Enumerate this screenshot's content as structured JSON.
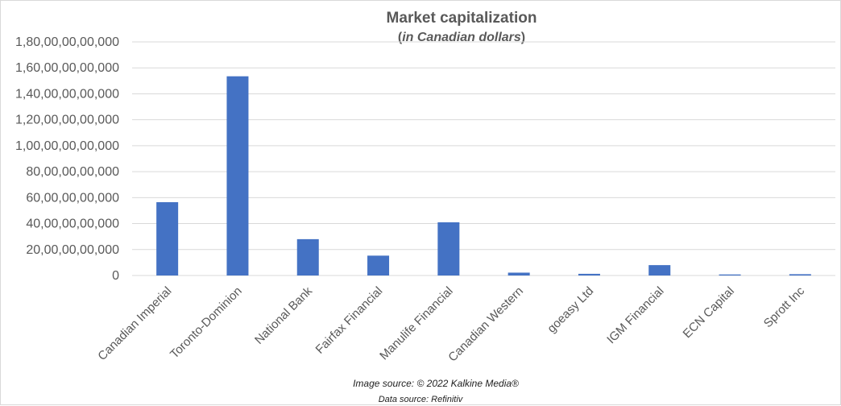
{
  "chart_data": {
    "type": "bar",
    "title": "Market capitalization",
    "subtitle_prefix": "(",
    "subtitle_italic": "in Canadian dollars",
    "subtitle_suffix": ")",
    "categories": [
      "Canadian Imperial",
      "Toronto-Dominion",
      "National Bank",
      "Fairfax Financial",
      "Manulife Financial",
      "Canadian Western",
      "goeasy Ltd",
      "IGM Financial",
      "ECN Capital",
      "Sprott Inc"
    ],
    "values": [
      56500000000,
      153500000000,
      28000000000,
      15300000000,
      41000000000,
      2200000000,
      1300000000,
      8000000000,
      800000000,
      1000000000
    ],
    "ylim": [
      0,
      180000000000
    ],
    "yticks": [
      0,
      20000000000,
      40000000000,
      60000000000,
      80000000000,
      100000000000,
      120000000000,
      140000000000,
      160000000000,
      180000000000
    ],
    "ytick_labels": [
      "0",
      "20,00,00,00,000",
      "40,00,00,00,000",
      "60,00,00,00,000",
      "80,00,00,00,000",
      "1,00,00,00,00,000",
      "1,20,00,00,00,000",
      "1,40,00,00,00,000",
      "1,60,00,00,00,000",
      "1,80,00,00,00,000"
    ],
    "grid": true,
    "bar_color": "#4472c4",
    "grid_color": "#d9d9d9"
  },
  "footer": {
    "image_source": "Image source: © 2022 Kalkine Media®",
    "data_source": "Data source: Refinitiv"
  }
}
